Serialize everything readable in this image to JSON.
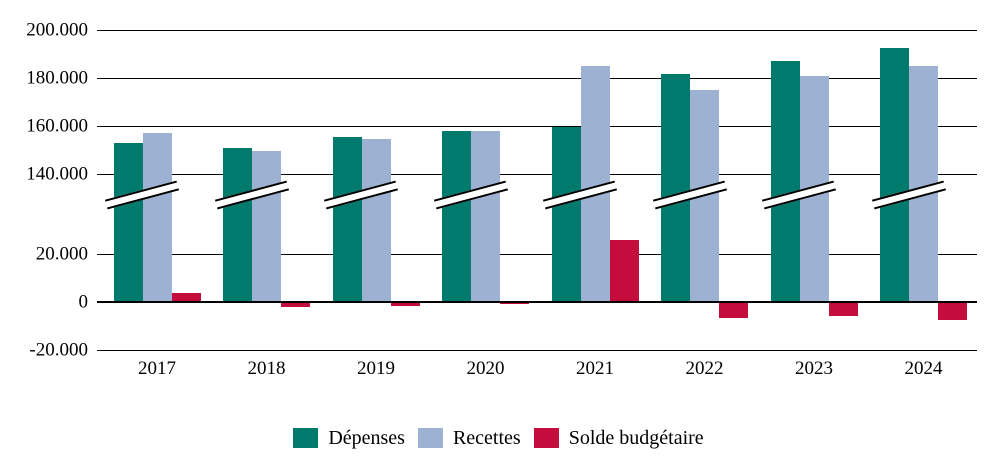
{
  "chart_data": {
    "type": "bar",
    "title": "",
    "xlabel": "",
    "ylabel": "",
    "categories": [
      "2017",
      "2018",
      "2019",
      "2020",
      "2021",
      "2022",
      "2023",
      "2024"
    ],
    "series": [
      {
        "name": "Dépenses",
        "color": "#007A6D",
        "values": [
          153000,
          151000,
          155500,
          158000,
          159500,
          181500,
          187000,
          192500
        ]
      },
      {
        "name": "Recettes",
        "color": "#9DB2D2",
        "values": [
          157000,
          149500,
          154500,
          158000,
          185000,
          175000,
          181000,
          185000
        ]
      },
      {
        "name": "Solde budgétaire",
        "color": "#C40D3D",
        "values": [
          3800,
          -2200,
          -1800,
          -800,
          26000,
          -6500,
          -6000,
          -7400
        ]
      }
    ],
    "y_axis": {
      "broken_axis": true,
      "break_between": [
        38000,
        140000
      ],
      "ticks": [
        {
          "value": 200000,
          "label": "200.000"
        },
        {
          "value": 180000,
          "label": "180.000"
        },
        {
          "value": 160000,
          "label": "160.000"
        },
        {
          "value": 140000,
          "label": "140.000"
        },
        {
          "value": 20000,
          "label": "20.000"
        },
        {
          "value": 0,
          "label": "0"
        },
        {
          "value": -20000,
          "label": "-20.000"
        }
      ]
    },
    "legend_position": "bottom",
    "grid": true,
    "background": "#FFFFFF",
    "gridline_color": "#000000"
  }
}
